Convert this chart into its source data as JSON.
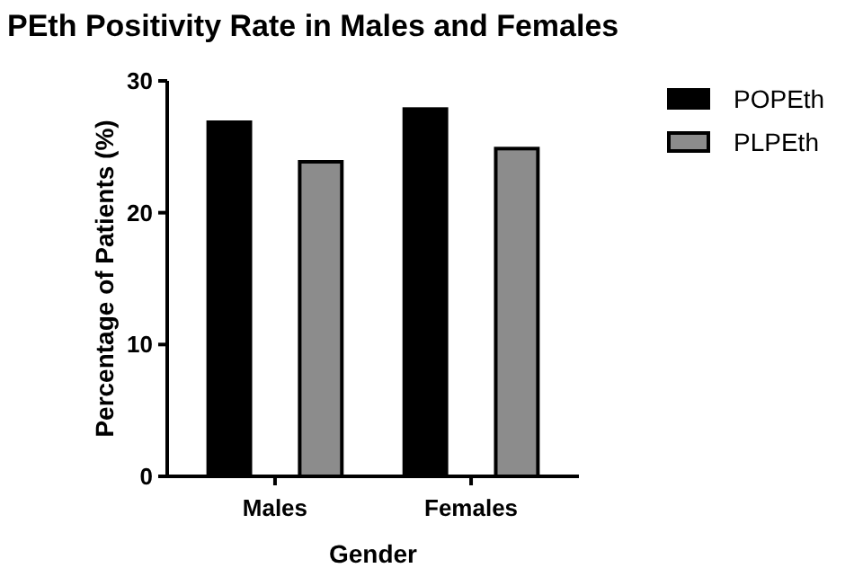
{
  "chart_data": {
    "type": "bar",
    "title": "PEth Positivity Rate in Males and Females",
    "xlabel": "Gender",
    "ylabel": "Percentage of Patients (%)",
    "categories": [
      "Males",
      "Females"
    ],
    "series": [
      {
        "name": "POPEth",
        "color": "#000000",
        "values": [
          27,
          28
        ]
      },
      {
        "name": "PLPEth",
        "color": "#8c8c8c",
        "values": [
          24,
          25
        ]
      }
    ],
    "ylim": [
      0,
      30
    ],
    "yticks": [
      0,
      10,
      20,
      30
    ],
    "grid": false,
    "legend": "top right"
  }
}
